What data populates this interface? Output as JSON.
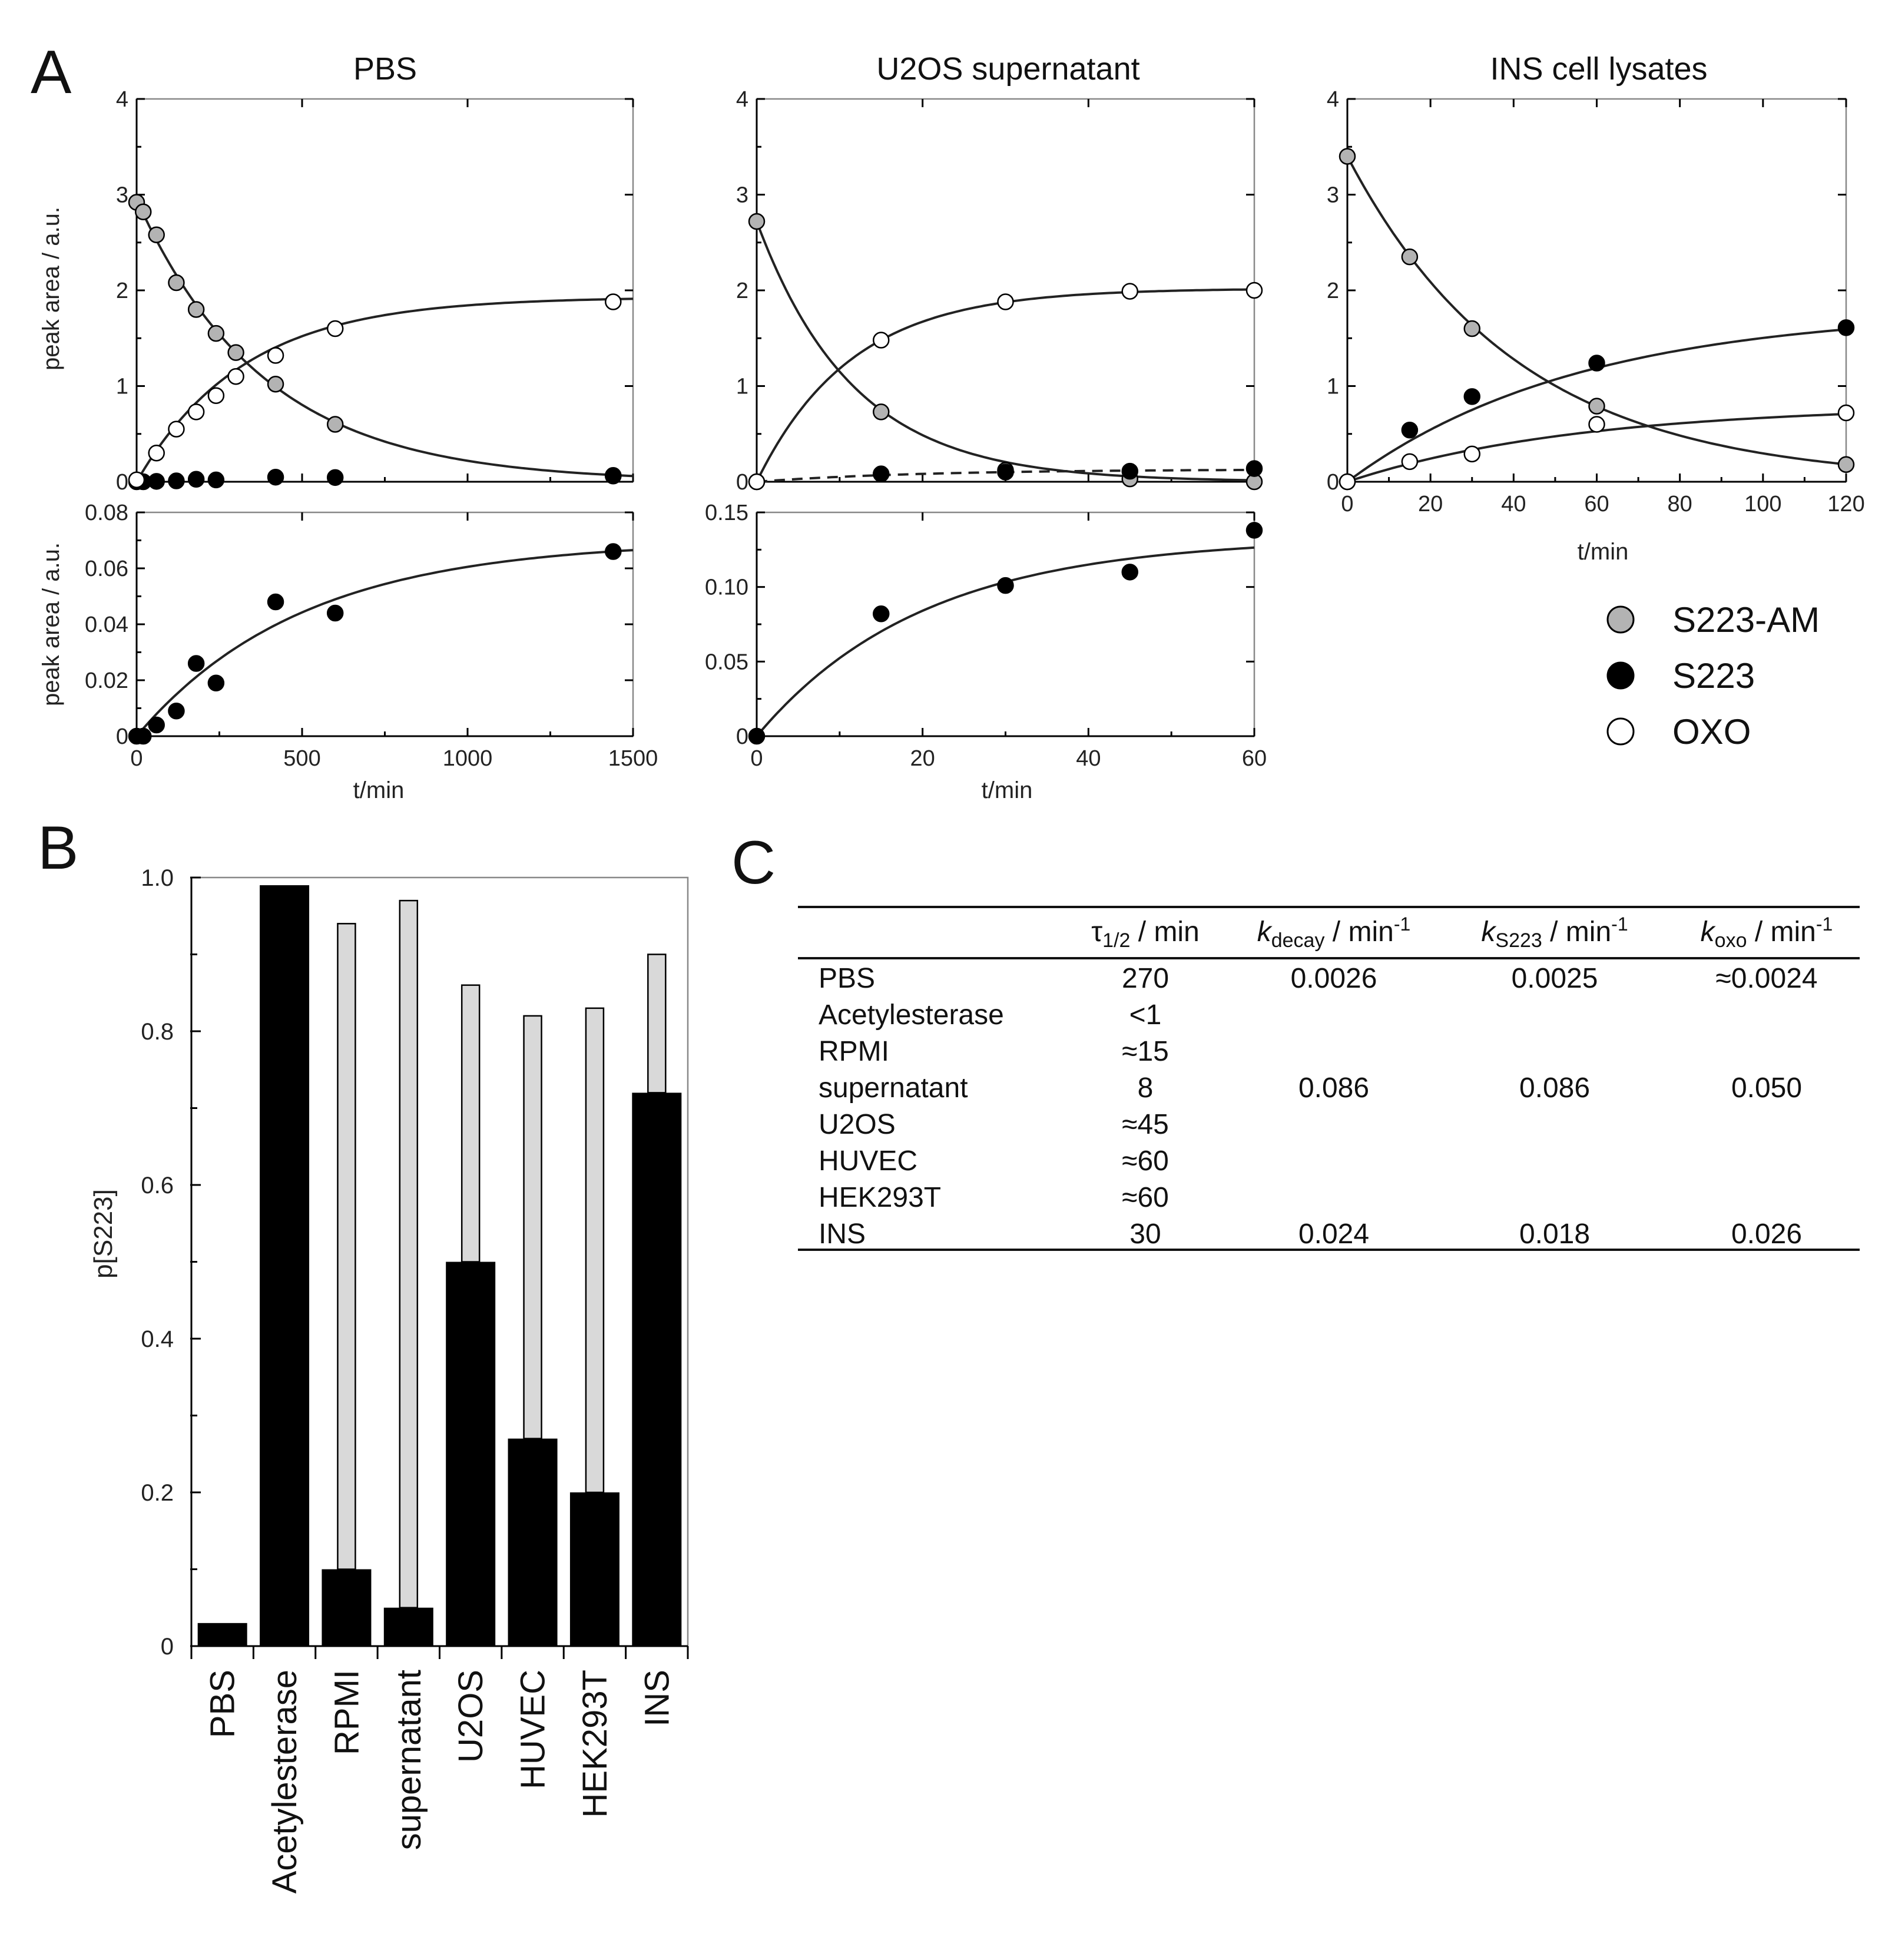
{
  "colors": {
    "S223-AM": "#b3b3b3",
    "S223": "#000000",
    "OXO": "#ffffff",
    "bar_total": "#d9d9d9",
    "bar_s223": "#000000"
  },
  "panel_letters": [
    "A",
    "B",
    "C"
  ],
  "legend": [
    {
      "label": "S223-AM",
      "color": "#b3b3b3"
    },
    {
      "label": "S223",
      "color": "#000000"
    },
    {
      "label": "OXO",
      "color": "#ffffff"
    }
  ],
  "chart_data": [
    {
      "id": "A-PBS-top",
      "type": "scatter",
      "title": "PBS",
      "ylabel": "peak area / a.u.",
      "xlim": [
        0,
        1500
      ],
      "ylim": [
        0,
        4
      ],
      "yticks": [
        "0",
        "1",
        "2",
        "3",
        "4"
      ],
      "series": [
        {
          "name": "S223-AM",
          "x": [
            0,
            20,
            60,
            120,
            180,
            240,
            300,
            420,
            600,
            1440
          ],
          "y": [
            2.92,
            2.82,
            2.58,
            2.08,
            1.8,
            1.55,
            1.35,
            1.02,
            0.6,
            0.06
          ]
        },
        {
          "name": "S223",
          "x": [
            0,
            20,
            60,
            120,
            180,
            240,
            420,
            600,
            1440
          ],
          "y": [
            0,
            0,
            0.004,
            0.009,
            0.026,
            0.019,
            0.048,
            0.044,
            0.066
          ]
        },
        {
          "name": "OXO",
          "x": [
            0,
            60,
            120,
            180,
            240,
            300,
            420,
            600,
            1440
          ],
          "y": [
            0.02,
            0.3,
            0.55,
            0.73,
            0.9,
            1.1,
            1.32,
            1.6,
            1.88
          ]
        }
      ]
    },
    {
      "id": "A-PBS-bottom",
      "type": "scatter",
      "xlabel": "t/min",
      "ylabel": "peak area / a.u.",
      "xlim": [
        0,
        1500
      ],
      "ylim": [
        0,
        0.08
      ],
      "xticks": [
        "0",
        "500",
        "1000",
        "1500"
      ],
      "yticks": [
        "0",
        "0.02",
        "0.04",
        "0.06",
        "0.08"
      ],
      "series": [
        {
          "name": "S223",
          "x": [
            0,
            20,
            60,
            120,
            180,
            240,
            420,
            600,
            1440
          ],
          "y": [
            0,
            0,
            0.004,
            0.009,
            0.026,
            0.019,
            0.048,
            0.044,
            0.066
          ]
        }
      ]
    },
    {
      "id": "A-U2OS-top",
      "type": "scatter",
      "title": "U2OS supernatant",
      "xlim": [
        0,
        60
      ],
      "ylim": [
        0,
        4
      ],
      "yticks": [
        "0",
        "1",
        "2",
        "3",
        "4"
      ],
      "series": [
        {
          "name": "S223-AM",
          "x": [
            0,
            15,
            30,
            45,
            60
          ],
          "y": [
            2.72,
            0.73,
            0.12,
            0.03,
            0.0
          ]
        },
        {
          "name": "S223",
          "x": [
            0,
            15,
            30,
            45,
            60
          ],
          "y": [
            0,
            0.082,
            0.101,
            0.11,
            0.138
          ]
        },
        {
          "name": "OXO",
          "x": [
            0,
            15,
            30,
            45,
            60
          ],
          "y": [
            0.0,
            1.48,
            1.88,
            1.99,
            2.0
          ]
        }
      ]
    },
    {
      "id": "A-U2OS-bottom",
      "type": "scatter",
      "xlabel": "t/min",
      "xlim": [
        0,
        60
      ],
      "ylim": [
        0,
        0.15
      ],
      "xticks": [
        "0",
        "20",
        "40",
        "60"
      ],
      "yticks": [
        "0",
        "0.05",
        "0.10",
        "0.15"
      ],
      "series": [
        {
          "name": "S223",
          "x": [
            0,
            15,
            30,
            45,
            60
          ],
          "y": [
            0,
            0.082,
            0.101,
            0.11,
            0.138
          ]
        }
      ]
    },
    {
      "id": "A-INS",
      "type": "scatter",
      "title": "INS cell lysates",
      "xlabel": "t/min",
      "xlim": [
        0,
        120
      ],
      "ylim": [
        0,
        4
      ],
      "xticks": [
        "0",
        "20",
        "40",
        "60",
        "80",
        "100",
        "120"
      ],
      "yticks": [
        "0",
        "1",
        "2",
        "3",
        "4"
      ],
      "series": [
        {
          "name": "S223-AM",
          "x": [
            0,
            15,
            30,
            60,
            120
          ],
          "y": [
            3.4,
            2.35,
            1.6,
            0.79,
            0.18
          ]
        },
        {
          "name": "S223",
          "x": [
            0,
            15,
            30,
            60,
            120
          ],
          "y": [
            0,
            0.54,
            0.89,
            1.24,
            1.61
          ]
        },
        {
          "name": "OXO",
          "x": [
            0,
            15,
            30,
            60,
            120
          ],
          "y": [
            0,
            0.21,
            0.29,
            0.6,
            0.72
          ]
        }
      ]
    },
    {
      "id": "B",
      "type": "bar",
      "ylabel": "p[S223]",
      "ylim": [
        0,
        1.0
      ],
      "yticks": [
        "0",
        "0.2",
        "0.4",
        "0.6",
        "0.8",
        "1.0"
      ],
      "categories": [
        "PBS",
        "Acetylesterase",
        "RPMI",
        "supernatant",
        "U2OS",
        "HUVEC",
        "HEK293T",
        "INS"
      ],
      "series": [
        {
          "name": "p[S223]",
          "values": [
            0.03,
            0.99,
            0.1,
            0.05,
            0.5,
            0.27,
            0.2,
            0.72
          ]
        },
        {
          "name": "total",
          "values": [
            0.03,
            0.99,
            0.94,
            0.97,
            0.86,
            0.82,
            0.83,
            0.9
          ]
        }
      ]
    },
    {
      "id": "C",
      "type": "table",
      "columns": [
        {
          "sym": "τ",
          "sub": "1/2",
          "unit": " / min",
          "sup": ""
        },
        {
          "sym": "k",
          "sub": "decay",
          "unit": " / min",
          "sup": "-1"
        },
        {
          "sym": "k",
          "sub": "S223",
          "unit": " / min",
          "sup": "-1"
        },
        {
          "sym": "k",
          "sub": "oxo",
          "unit": "  / min",
          "sup": "-1"
        }
      ],
      "rows": [
        [
          "PBS",
          "270",
          "0.0026",
          "0.0025",
          "≈0.0024"
        ],
        [
          "Acetylesterase",
          "<1",
          "",
          "",
          ""
        ],
        [
          "RPMI",
          "≈15",
          "",
          "",
          ""
        ],
        [
          "supernatant",
          "8",
          "0.086",
          "0.086",
          "0.050"
        ],
        [
          "U2OS",
          "≈45",
          "",
          "",
          ""
        ],
        [
          "HUVEC",
          "≈60",
          "",
          "",
          ""
        ],
        [
          "HEK293T",
          "≈60",
          "",
          "",
          ""
        ],
        [
          "INS",
          "30",
          "0.024",
          "0.018",
          "0.026"
        ]
      ]
    }
  ]
}
